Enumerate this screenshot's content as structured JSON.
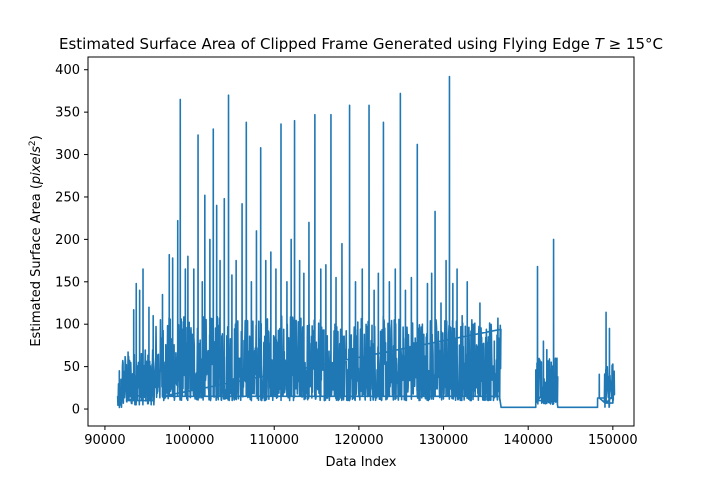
{
  "chart_data": {
    "type": "line",
    "title_prefix": "Estimated Surface Area of Clipped Frame Generated using Flying Edge ",
    "title_var": "T",
    "title_suffix": " ≥ 15°C",
    "xlabel": "Data Index",
    "ylabel_prefix": "Estimated Surface Area (",
    "ylabel_unit": "pixels",
    "ylabel_sup": "2",
    "ylabel_suffix": ")",
    "xlim": [
      88000,
      152500
    ],
    "ylim": [
      -20,
      415
    ],
    "xticks": [
      90000,
      100000,
      110000,
      120000,
      130000,
      140000,
      150000
    ],
    "xtick_labels": [
      "90000",
      "100000",
      "110000",
      "120000",
      "130000",
      "140000",
      "150000"
    ],
    "yticks": [
      0,
      50,
      100,
      150,
      200,
      250,
      300,
      350,
      400
    ],
    "ytick_labels": [
      "0",
      "50",
      "100",
      "150",
      "200",
      "250",
      "300",
      "350",
      "400"
    ],
    "line_color": "#1f77b4",
    "series": [
      {
        "segments": [
          {
            "x_start": 91500,
            "x_end": 92000,
            "low": 0,
            "high": 30,
            "peaks": [
              [
                91700,
                45
              ],
              [
                91900,
                35
              ]
            ]
          },
          {
            "x_start": 92000,
            "x_end": 96000,
            "low": 5,
            "high": 70,
            "peaks": [
              [
                92800,
                62
              ],
              [
                93400,
                117
              ],
              [
                93700,
                148
              ],
              [
                94100,
                140
              ],
              [
                94500,
                165
              ],
              [
                95200,
                120
              ],
              [
                95700,
                110
              ]
            ]
          },
          {
            "x_start": 96000,
            "x_end": 136800,
            "low": 10,
            "high": 110,
            "peaks": [
              [
                96800,
                135
              ],
              [
                97600,
                182
              ],
              [
                98000,
                178
              ],
              [
                98600,
                222
              ],
              [
                98900,
                365
              ],
              [
                99500,
                165
              ],
              [
                99800,
                180
              ],
              [
                100500,
                165
              ],
              [
                101000,
                323
              ],
              [
                101500,
                150
              ],
              [
                101800,
                252
              ],
              [
                102400,
                200
              ],
              [
                102800,
                330
              ],
              [
                103200,
                240
              ],
              [
                103600,
                175
              ],
              [
                104100,
                248
              ],
              [
                104600,
                370
              ],
              [
                105000,
                158
              ],
              [
                105500,
                175
              ],
              [
                106200,
                242
              ],
              [
                106700,
                338
              ],
              [
                107300,
                150
              ],
              [
                107900,
                210
              ],
              [
                108400,
                308
              ],
              [
                109000,
                175
              ],
              [
                109600,
                185
              ],
              [
                110200,
                165
              ],
              [
                110800,
                336
              ],
              [
                111500,
                150
              ],
              [
                112000,
                200
              ],
              [
                112400,
                340
              ],
              [
                113000,
                175
              ],
              [
                113500,
                160
              ],
              [
                114100,
                220
              ],
              [
                114800,
                347
              ],
              [
                115500,
                165
              ],
              [
                116100,
                170
              ],
              [
                116700,
                347
              ],
              [
                117300,
                155
              ],
              [
                118000,
                195
              ],
              [
                118900,
                358
              ],
              [
                119600,
                150
              ],
              [
                120400,
                165
              ],
              [
                121200,
                358
              ],
              [
                121800,
                140
              ],
              [
                122300,
                160
              ],
              [
                122900,
                338
              ],
              [
                123600,
                150
              ],
              [
                124300,
                165
              ],
              [
                124900,
                372
              ],
              [
                125500,
                140
              ],
              [
                126200,
                155
              ],
              [
                126900,
                312
              ],
              [
                127500,
                100
              ],
              [
                128100,
                148
              ],
              [
                128600,
                160
              ],
              [
                129000,
                233
              ],
              [
                129700,
                125
              ],
              [
                130300,
                175
              ],
              [
                130700,
                392
              ],
              [
                131100,
                148
              ],
              [
                131600,
                165
              ],
              [
                132200,
                110
              ],
              [
                132800,
                150
              ],
              [
                133500,
                100
              ],
              [
                134300,
                125
              ],
              [
                135300,
                85
              ],
              [
                136000,
                80
              ],
              [
                136600,
                65
              ]
            ]
          },
          {
            "x_start": 136800,
            "x_end": 140900,
            "flat": 2
          },
          {
            "x_start": 140900,
            "x_end": 143500,
            "low": 5,
            "high": 60,
            "peaks": [
              [
                141100,
                168
              ],
              [
                141800,
                80
              ],
              [
                142200,
                70
              ],
              [
                143000,
                200
              ],
              [
                143400,
                60
              ]
            ]
          },
          {
            "x_start": 143500,
            "x_end": 148200,
            "flat": 2
          },
          {
            "x_start": 148200,
            "x_end": 149000,
            "flat": 13,
            "peaks": [
              [
                148400,
                41
              ]
            ]
          },
          {
            "x_start": 149000,
            "x_end": 150200,
            "low": 2,
            "high": 60,
            "peaks": [
              [
                149200,
                114
              ],
              [
                149600,
                95
              ],
              [
                150000,
                53
              ]
            ]
          }
        ]
      }
    ]
  }
}
